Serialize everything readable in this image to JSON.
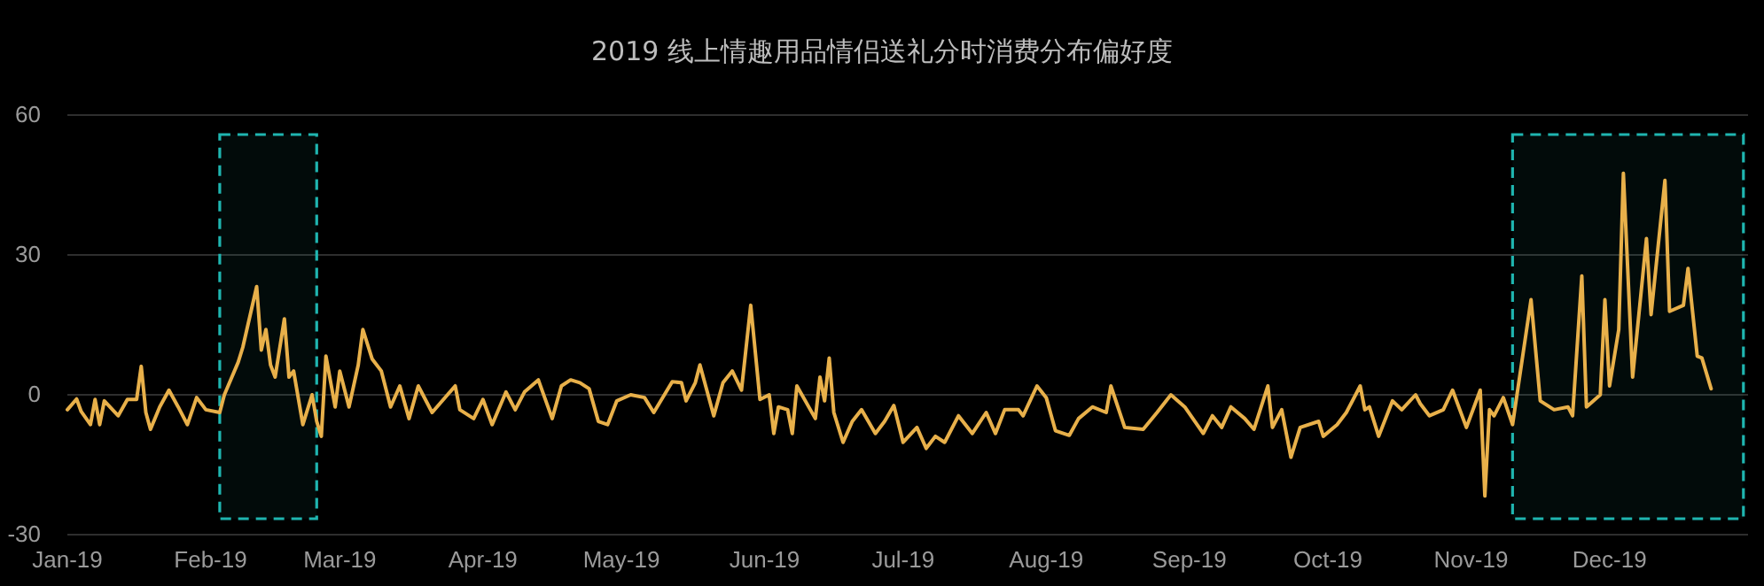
{
  "chart_data": {
    "type": "line",
    "title": "2019 线上情趣用品情侣送礼分时消费分布偏好度",
    "xlim": [
      "2019-01-01",
      "2019-12-31"
    ],
    "xticks": [
      {
        "value": "2019-01-01",
        "label": "Jan-19"
      },
      {
        "value": "2019-02-01",
        "label": "Feb-19"
      },
      {
        "value": "2019-03-01",
        "label": "Mar-19"
      },
      {
        "value": "2019-04-01",
        "label": "Apr-19"
      },
      {
        "value": "2019-05-01",
        "label": "May-19"
      },
      {
        "value": "2019-06-01",
        "label": "Jun-19"
      },
      {
        "value": "2019-07-01",
        "label": "Jul-19"
      },
      {
        "value": "2019-08-01",
        "label": "Aug-19"
      },
      {
        "value": "2019-09-01",
        "label": "Sep-19"
      },
      {
        "value": "2019-10-01",
        "label": "Oct-19"
      },
      {
        "value": "2019-11-01",
        "label": "Nov-19"
      },
      {
        "value": "2019-12-01",
        "label": "Dec-19"
      }
    ],
    "ylim": [
      -30,
      60
    ],
    "yticks": [
      -30,
      0,
      30,
      60
    ],
    "grid": "y",
    "line_style": "solid",
    "bands": [
      {
        "axis": "x",
        "from": "2019-02-03",
        "to": "2019-02-24",
        "color": "#1fb5b0"
      },
      {
        "axis": "x",
        "from": "2019-11-10",
        "to": "2019-12-30",
        "color": "#1fb5b0"
      }
    ],
    "series": [
      {
        "color": "#e8b04a",
        "x": [
          "2019-01-01",
          "2019-01-03",
          "2019-01-04",
          "2019-01-06",
          "2019-01-07",
          "2019-01-08",
          "2019-01-09",
          "2019-01-12",
          "2019-01-14",
          "2019-01-16",
          "2019-01-17",
          "2019-01-18",
          "2019-01-19",
          "2019-01-21",
          "2019-01-23",
          "2019-01-25",
          "2019-01-27",
          "2019-01-29",
          "2019-01-31",
          "2019-02-03",
          "2019-02-04",
          "2019-02-07",
          "2019-02-08",
          "2019-02-11",
          "2019-02-12",
          "2019-02-13",
          "2019-02-14",
          "2019-02-15",
          "2019-02-17",
          "2019-02-18",
          "2019-02-19",
          "2019-02-21",
          "2019-02-23",
          "2019-02-24",
          "2019-02-25",
          "2019-02-26",
          "2019-02-28",
          "2019-03-01",
          "2019-03-03",
          "2019-03-05",
          "2019-03-06",
          "2019-03-08",
          "2019-03-10",
          "2019-03-12",
          "2019-03-14",
          "2019-03-16",
          "2019-03-18",
          "2019-03-21",
          "2019-03-26",
          "2019-03-27",
          "2019-03-30",
          "2019-04-01",
          "2019-04-03",
          "2019-04-06",
          "2019-04-08",
          "2019-04-10",
          "2019-04-13",
          "2019-04-16",
          "2019-04-18",
          "2019-04-20",
          "2019-04-22",
          "2019-04-24",
          "2019-04-26",
          "2019-04-28",
          "2019-04-30",
          "2019-05-03",
          "2019-05-06",
          "2019-05-08",
          "2019-05-12",
          "2019-05-14",
          "2019-05-15",
          "2019-05-17",
          "2019-05-18",
          "2019-05-21",
          "2019-05-23",
          "2019-05-25",
          "2019-05-27",
          "2019-05-29",
          "2019-05-31",
          "2019-06-02",
          "2019-06-03",
          "2019-06-04",
          "2019-06-06",
          "2019-06-07",
          "2019-06-08",
          "2019-06-12",
          "2019-06-13",
          "2019-06-14",
          "2019-06-15",
          "2019-06-16",
          "2019-06-18",
          "2019-06-20",
          "2019-06-22",
          "2019-06-25",
          "2019-06-27",
          "2019-06-29",
          "2019-07-01",
          "2019-07-04",
          "2019-07-06",
          "2019-07-08",
          "2019-07-10",
          "2019-07-13",
          "2019-07-16",
          "2019-07-19",
          "2019-07-21",
          "2019-07-23",
          "2019-07-26",
          "2019-07-27",
          "2019-07-30",
          "2019-08-01",
          "2019-08-03",
          "2019-08-06",
          "2019-08-08",
          "2019-08-11",
          "2019-08-14",
          "2019-08-15",
          "2019-08-18",
          "2019-08-22",
          "2019-08-25",
          "2019-08-28",
          "2019-08-31",
          "2019-09-04",
          "2019-09-06",
          "2019-09-08",
          "2019-09-10",
          "2019-09-13",
          "2019-09-15",
          "2019-09-18",
          "2019-09-19",
          "2019-09-21",
          "2019-09-23",
          "2019-09-25",
          "2019-09-29",
          "2019-09-30",
          "2019-10-03",
          "2019-10-05",
          "2019-10-08",
          "2019-10-09",
          "2019-10-10",
          "2019-10-12",
          "2019-10-15",
          "2019-10-17",
          "2019-10-20",
          "2019-10-21",
          "2019-10-23",
          "2019-10-26",
          "2019-10-28",
          "2019-10-31",
          "2019-11-03",
          "2019-11-04",
          "2019-11-05",
          "2019-11-06",
          "2019-11-08",
          "2019-11-10",
          "2019-11-14",
          "2019-11-16",
          "2019-11-19",
          "2019-11-22",
          "2019-11-23",
          "2019-11-25",
          "2019-11-26",
          "2019-11-29",
          "2019-11-30",
          "2019-12-01",
          "2019-12-03",
          "2019-12-04",
          "2019-12-06",
          "2019-12-09",
          "2019-12-10",
          "2019-12-13",
          "2019-12-14",
          "2019-12-17",
          "2019-12-18",
          "2019-12-20",
          "2019-12-21",
          "2019-12-23"
        ],
        "values": [
          -3.2,
          -0.9,
          -3.6,
          -6.4,
          -1,
          -6.4,
          -1.3,
          -4.5,
          -1,
          -1,
          6.1,
          -3.8,
          -7.4,
          -2.6,
          1,
          -2.6,
          -6.4,
          -0.6,
          -3.2,
          -3.8,
          0,
          7,
          10.2,
          23.2,
          9.6,
          14,
          6.4,
          3.8,
          16.3,
          3.8,
          5.1,
          -6.4,
          0,
          -5.7,
          -8.9,
          8.3,
          -2.6,
          5.1,
          -2.6,
          6.4,
          14,
          7.7,
          5.1,
          -2.6,
          1.9,
          -5.1,
          1.9,
          -3.8,
          1.9,
          -3.2,
          -5.1,
          -1,
          -6.4,
          0.6,
          -3.2,
          0.6,
          3.2,
          -5.1,
          1.9,
          3.2,
          2.6,
          1.3,
          -5.7,
          -6.4,
          -1.3,
          0,
          -0.6,
          -3.8,
          2.8,
          2.6,
          -1.3,
          2.6,
          6.4,
          -4.5,
          2.6,
          5.1,
          1,
          19.2,
          -1,
          0,
          -8.3,
          -2.6,
          -3.2,
          -8.3,
          1.9,
          -5.1,
          3.8,
          -1.3,
          7.9,
          -3.8,
          -10.2,
          -5.7,
          -3.2,
          -8.3,
          -5.7,
          -2.3,
          -10.2,
          -7,
          -11.5,
          -8.9,
          -10.2,
          -4.5,
          -8.3,
          -3.8,
          -8.3,
          -3.2,
          -3.2,
          -4.5,
          1.9,
          -0.6,
          -7.7,
          -8.7,
          -5.1,
          -2.6,
          -3.8,
          1.9,
          -7,
          -7.4,
          -3.8,
          0,
          -2.6,
          -8.3,
          -4.5,
          -7,
          -2.6,
          -5.1,
          -7.4,
          1.9,
          -7,
          -3.2,
          -13.4,
          -7,
          -5.7,
          -8.9,
          -6.4,
          -3.8,
          1.9,
          -3.2,
          -2.6,
          -8.9,
          -1.3,
          -3.2,
          0,
          -1.9,
          -4.5,
          -3.2,
          1,
          -7,
          1,
          -21.7,
          -3.2,
          -4.5,
          -0.6,
          -6.4,
          20.4,
          -1.3,
          -3.2,
          -2.6,
          -4.5,
          25.5,
          -2.6,
          0,
          20.4,
          1.9,
          14,
          47.5,
          3.8,
          33.5,
          17.2,
          46,
          17.9,
          19.2,
          27.1,
          8.3,
          7.9,
          1.3
        ]
      }
    ]
  }
}
